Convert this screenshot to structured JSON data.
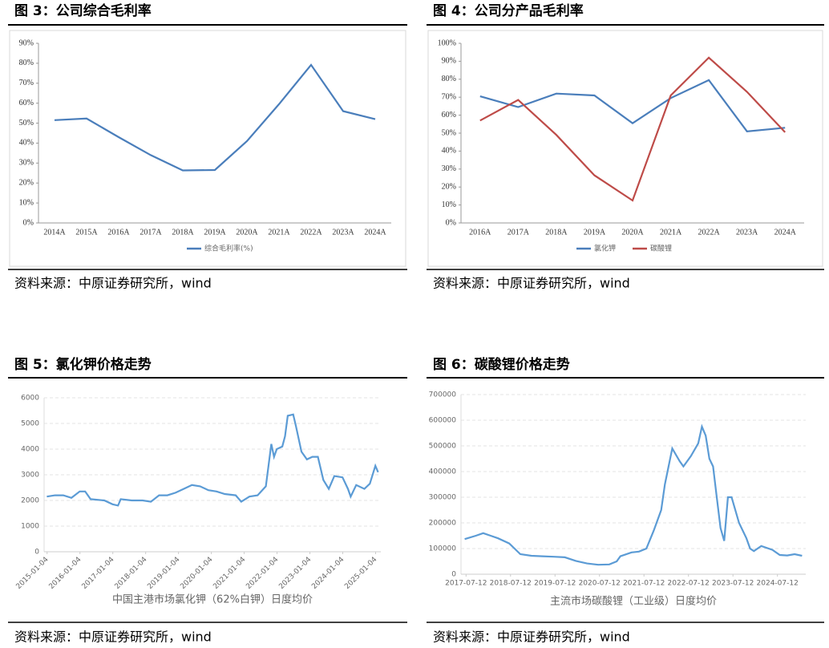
{
  "chart_data": [
    {
      "type": "line",
      "title": "图 3：公司综合毛利率",
      "source": "资料来源：中原证券研究所，wind",
      "categories": [
        "2014A",
        "2015A",
        "2016A",
        "2017A",
        "2018A",
        "2019A",
        "2020A",
        "2021A",
        "2022A",
        "2023A",
        "2024A"
      ],
      "series": [
        {
          "name": "综合毛利率(%)",
          "color": "#4a7ebb",
          "values": [
            51.5,
            52.3,
            43,
            34,
            26.3,
            26.5,
            41,
            59.5,
            79.2,
            56,
            52
          ]
        }
      ],
      "ylim": [
        0,
        90
      ],
      "yticks": [
        {
          "value": 0,
          "label": "0%"
        },
        {
          "value": 10,
          "label": "10%"
        },
        {
          "value": 20,
          "label": "20%"
        },
        {
          "value": 30,
          "label": "30%"
        },
        {
          "value": 40,
          "label": "40%"
        },
        {
          "value": 50,
          "label": "50%"
        },
        {
          "value": 60,
          "label": "60%"
        },
        {
          "value": 70,
          "label": "70%"
        },
        {
          "value": 80,
          "label": "80%"
        },
        {
          "value": 90,
          "label": "90%"
        }
      ],
      "grid": false,
      "legend": "bottom"
    },
    {
      "type": "line",
      "title": "图 4：公司分产品毛利率",
      "source": "资料来源：中原证券研究所，wind",
      "categories": [
        "2016A",
        "2017A",
        "2018A",
        "2019A",
        "2020A",
        "2021A",
        "2022A",
        "2023A",
        "2024A"
      ],
      "series": [
        {
          "name": "氯化钾",
          "color": "#4a7ebb",
          "values": [
            70.5,
            64.5,
            72,
            71,
            55.5,
            69.5,
            79.5,
            51,
            53
          ]
        },
        {
          "name": "碳酸锂",
          "color": "#be4b48",
          "values": [
            57,
            68.5,
            49,
            26.5,
            12.5,
            71,
            92,
            73,
            50.5
          ]
        }
      ],
      "ylim": [
        0,
        100
      ],
      "yticks": [
        {
          "value": 0,
          "label": "0%"
        },
        {
          "value": 10,
          "label": "10%"
        },
        {
          "value": 20,
          "label": "20%"
        },
        {
          "value": 30,
          "label": "30%"
        },
        {
          "value": 40,
          "label": "40%"
        },
        {
          "value": 50,
          "label": "50%"
        },
        {
          "value": 60,
          "label": "60%"
        },
        {
          "value": 70,
          "label": "70%"
        },
        {
          "value": 80,
          "label": "80%"
        },
        {
          "value": 90,
          "label": "90%"
        },
        {
          "value": 100,
          "label": "100%"
        }
      ],
      "grid": false,
      "legend": "bottom"
    },
    {
      "type": "line",
      "title": "图 5：氯化钾价格走势",
      "source": "资料来源：中原证券研究所，wind",
      "xlabel": "中国主港市场氯化钾（62%白钾）日度均价",
      "color": "#5b9bd5",
      "x": [
        "2015-01",
        "2015-04",
        "2015-07",
        "2015-10",
        "2016-01",
        "2016-03",
        "2016-05",
        "2016-10",
        "2017-01",
        "2017-03",
        "2017-04",
        "2017-08",
        "2017-12",
        "2018-03",
        "2018-06",
        "2018-09",
        "2018-12",
        "2019-03",
        "2019-06",
        "2019-09",
        "2019-12",
        "2020-03",
        "2020-06",
        "2020-10",
        "2020-12",
        "2021-03",
        "2021-06",
        "2021-09",
        "2021-11",
        "2021-12",
        "2022-01",
        "2022-03",
        "2022-04",
        "2022-05",
        "2022-07",
        "2022-08",
        "2022-10",
        "2022-12",
        "2023-02",
        "2023-04",
        "2023-06",
        "2023-08",
        "2023-10",
        "2024-01",
        "2024-03",
        "2024-04",
        "2024-06",
        "2024-09",
        "2024-11",
        "2025-01",
        "2025-02"
      ],
      "values": [
        2150,
        2200,
        2200,
        2100,
        2350,
        2350,
        2050,
        2000,
        1850,
        1800,
        2050,
        2000,
        2000,
        1950,
        2200,
        2200,
        2300,
        2450,
        2600,
        2550,
        2400,
        2350,
        2250,
        2200,
        1950,
        2150,
        2200,
        2550,
        4200,
        3700,
        4000,
        4100,
        4500,
        5300,
        5350,
        4900,
        3900,
        3600,
        3700,
        3700,
        2800,
        2450,
        2950,
        2900,
        2450,
        2150,
        2600,
        2450,
        2650,
        3350,
        3100
      ],
      "xlim": [
        "2014-12",
        "2025-03"
      ],
      "xticks": [
        "2015-01-04",
        "2016-01-04",
        "2017-01-04",
        "2018-01-04",
        "2019-01-04",
        "2020-01-04",
        "2021-01-04",
        "2022-01-04",
        "2023-01-04",
        "2024-01-04",
        "2025-01-04"
      ],
      "ylim": [
        0,
        6000
      ],
      "yticks": [
        0,
        1000,
        2000,
        3000,
        4000,
        5000,
        6000
      ],
      "grid": true
    },
    {
      "type": "line",
      "title": "图 6：碳酸锂价格走势",
      "source": "资料来源：中原证券研究所，wind",
      "xlabel": "主流市场碳酸锂（工业级）日度均价",
      "color": "#5b9bd5",
      "x": [
        "2017-07",
        "2017-10",
        "2017-12",
        "2018-02",
        "2018-04",
        "2018-07",
        "2018-10",
        "2019-01",
        "2019-04",
        "2019-07",
        "2019-10",
        "2020-01",
        "2020-04",
        "2020-07",
        "2020-10",
        "2020-12",
        "2021-01",
        "2021-04",
        "2021-06",
        "2021-08",
        "2021-10",
        "2021-12",
        "2022-01",
        "2022-03",
        "2022-05",
        "2022-06",
        "2022-08",
        "2022-10",
        "2022-11",
        "2022-12",
        "2023-01",
        "2023-02",
        "2023-03",
        "2023-04",
        "2023-05",
        "2023-06",
        "2023-07",
        "2023-09",
        "2023-11",
        "2023-12",
        "2024-01",
        "2024-03",
        "2024-06",
        "2024-08",
        "2024-10",
        "2024-12",
        "2025-02"
      ],
      "values": [
        137000,
        150000,
        160000,
        150000,
        140000,
        120000,
        78000,
        72000,
        70000,
        68000,
        66000,
        52000,
        42000,
        37000,
        38000,
        50000,
        70000,
        85000,
        88000,
        100000,
        170000,
        250000,
        350000,
        490000,
        440000,
        420000,
        460000,
        510000,
        575000,
        540000,
        450000,
        420000,
        300000,
        180000,
        130000,
        300000,
        300000,
        200000,
        140000,
        100000,
        90000,
        110000,
        95000,
        75000,
        73000,
        78000,
        72000
      ],
      "xlim": [
        "2017-06",
        "2025-03"
      ],
      "xticks": [
        "2017-07-12",
        "2018-07-12",
        "2019-07-12",
        "2020-07-12",
        "2021-07-12",
        "2022-07-12",
        "2023-07-12",
        "2024-07-12"
      ],
      "ylim": [
        0,
        700000
      ],
      "yticks": [
        0,
        100000,
        200000,
        300000,
        400000,
        500000,
        600000,
        700000
      ],
      "grid": true
    }
  ]
}
